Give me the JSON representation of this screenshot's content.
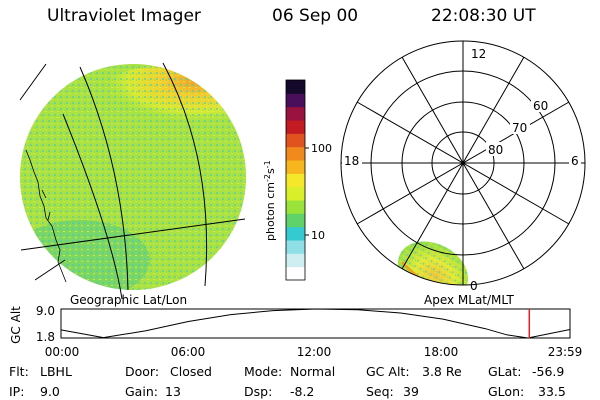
{
  "header": {
    "instrument": "Ultraviolet Imager",
    "date": "06 Sep 00",
    "time": "22:08:30 UT"
  },
  "colorbar": {
    "unit_label": "photon cm",
    "unit_exp1": "-2",
    "unit_mid": "s",
    "unit_exp2": "-1",
    "ticks": [
      {
        "label": "100",
        "value": 100
      },
      {
        "label": "10",
        "value": 10
      }
    ],
    "colors": [
      "#ffffff",
      "#cfeef2",
      "#8fdfe6",
      "#35c9d0",
      "#5fd26a",
      "#9ae33a",
      "#d9ef2a",
      "#f5e72a",
      "#f7b51e",
      "#f08a1c",
      "#e0521e",
      "#c21b22",
      "#9a1240",
      "#4a0f5a",
      "#15092b"
    ]
  },
  "geo_panel": {
    "caption": "Geographic Lat/Lon"
  },
  "polar_panel": {
    "caption": "Apex MLat/MLT",
    "lat_labels": [
      "60",
      "70",
      "80"
    ],
    "mlt_labels": {
      "top": "12",
      "left": "18",
      "right": "6",
      "bottom": "0"
    }
  },
  "altitude_plot": {
    "ylabel": "GC Alt",
    "ytick_top": "9.0",
    "ytick_bottom": "1.8",
    "xticks": [
      "00:00",
      "06:00",
      "12:00",
      "18:00",
      "23:59"
    ],
    "current_time_fraction": 0.92,
    "curve_color": "#000000",
    "marker_color": "#e02020"
  },
  "chart_data": {
    "type": "line",
    "title": "",
    "xlabel": "",
    "ylabel": "GC Alt",
    "x": [
      "00:00",
      "02:00",
      "04:00",
      "06:00",
      "08:00",
      "10:00",
      "12:00",
      "14:00",
      "16:00",
      "18:00",
      "20:00",
      "21:00",
      "22:00",
      "23:59"
    ],
    "series": [
      {
        "values": [
          3.8,
          1.9,
          3.6,
          5.9,
          7.6,
          8.6,
          9.0,
          8.8,
          8.0,
          6.5,
          4.1,
          2.6,
          1.8,
          3.9
        ]
      }
    ],
    "ylim": [
      1.8,
      9.0
    ]
  },
  "info": {
    "flt_label": "Flt:",
    "flt": "LBHL",
    "ip_label": "IP:",
    "ip": "9.0",
    "door_label": "Door:",
    "door": "Closed",
    "gain_label": "Gain:",
    "gain": "13",
    "mode_label": "Mode:",
    "mode": "Normal",
    "dsp_label": "Dsp:",
    "dsp": "-8.2",
    "gcalt_label": "GC Alt:",
    "gcalt": "3.8 Re",
    "seq_label": "Seq:",
    "seq": "39",
    "glat_label": "GLat:",
    "glat": "-56.9",
    "glon_label": "GLon:",
    "glon": "33.5"
  }
}
